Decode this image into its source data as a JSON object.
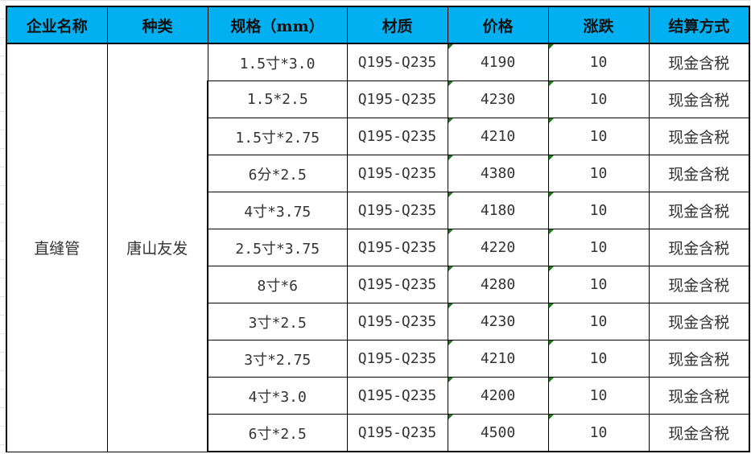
{
  "headers": [
    "企业名称",
    "种类",
    "规格（mm）",
    "材质",
    "价格",
    "涨跌",
    "结算方式"
  ],
  "product": "直缝管",
  "company": "唐山友发",
  "rows": [
    {
      "spec": "1.5寸*3.0",
      "material": "Q195-Q235",
      "price": "4190",
      "change": "10",
      "settle": "现金含税"
    },
    {
      "spec": "1.5*2.5",
      "material": "Q195-Q235",
      "price": "4230",
      "change": "10",
      "settle": "现金含税"
    },
    {
      "spec": "1.5寸*2.75",
      "material": "Q195-Q235",
      "price": "4210",
      "change": "10",
      "settle": "现金含税"
    },
    {
      "spec": "6分*2.5",
      "material": "Q195-Q235",
      "price": "4380",
      "change": "10",
      "settle": "现金含税"
    },
    {
      "spec": "4寸*3.75",
      "material": "Q195-Q235",
      "price": "4180",
      "change": "10",
      "settle": "现金含税"
    },
    {
      "spec": "2.5寸*3.75",
      "material": "Q195-Q235",
      "price": "4220",
      "change": "10",
      "settle": "现金含税"
    },
    {
      "spec": "8寸*6",
      "material": "Q195-Q235",
      "price": "4280",
      "change": "10",
      "settle": "现金含税"
    },
    {
      "spec": "3寸*2.5",
      "material": "Q195-Q235",
      "price": "4230",
      "change": "10",
      "settle": "现金含税"
    },
    {
      "spec": "3寸*2.75",
      "material": "Q195-Q235",
      "price": "4210",
      "change": "10",
      "settle": "现金含税"
    },
    {
      "spec": "4寸*3.0",
      "material": "Q195-Q235",
      "price": "4200",
      "change": "10",
      "settle": "现金含税"
    },
    {
      "spec": "6寸*2.5",
      "material": "Q195-Q235",
      "price": "4500",
      "change": "10",
      "settle": "现金含税"
    }
  ],
  "colors": {
    "header_bg": "#00B0F0",
    "error_marker": "#1a7a1a"
  }
}
